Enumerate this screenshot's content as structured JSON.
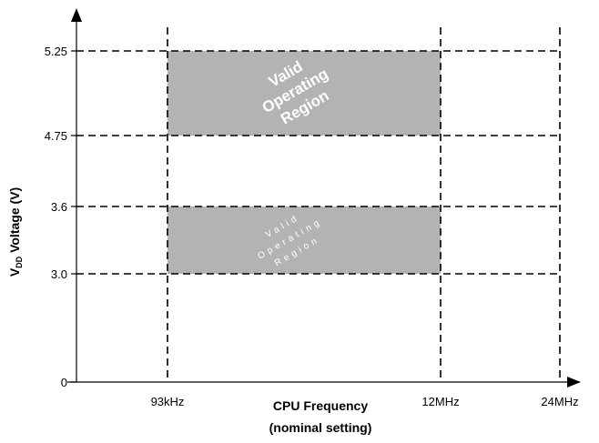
{
  "chart_data": {
    "type": "area",
    "ylabel_main": "V",
    "ylabel_sub": "DD",
    "ylabel_rest": " Voltage (V)",
    "xlabel_line1": "CPU Frequency",
    "xlabel_line2": "(nominal setting)",
    "y_ticks": [
      {
        "label": "0",
        "value": 0
      },
      {
        "label": "3.0",
        "value": 3.0
      },
      {
        "label": "3.6",
        "value": 3.6
      },
      {
        "label": "4.75",
        "value": 4.75
      },
      {
        "label": "5.25",
        "value": 5.25
      }
    ],
    "x_ticks": [
      {
        "label": "93kHz",
        "value": "93kHz"
      },
      {
        "label": "12MHz",
        "value": "12MHz"
      },
      {
        "label": "24MHz",
        "value": "24MHz"
      }
    ],
    "regions": [
      {
        "x_from": "93kHz",
        "x_to": "12MHz",
        "y_from": 4.75,
        "y_to": 5.25,
        "lines": [
          "Valid",
          "Operating",
          "Region"
        ]
      },
      {
        "x_from": "93kHz",
        "x_to": "12MHz",
        "y_from": 3.0,
        "y_to": 3.6,
        "lines": [
          "Valid",
          "Operating",
          "Region"
        ]
      }
    ],
    "grid": "dashed",
    "colors": {
      "region": "#b3b3b3",
      "grid": "#000000"
    }
  }
}
